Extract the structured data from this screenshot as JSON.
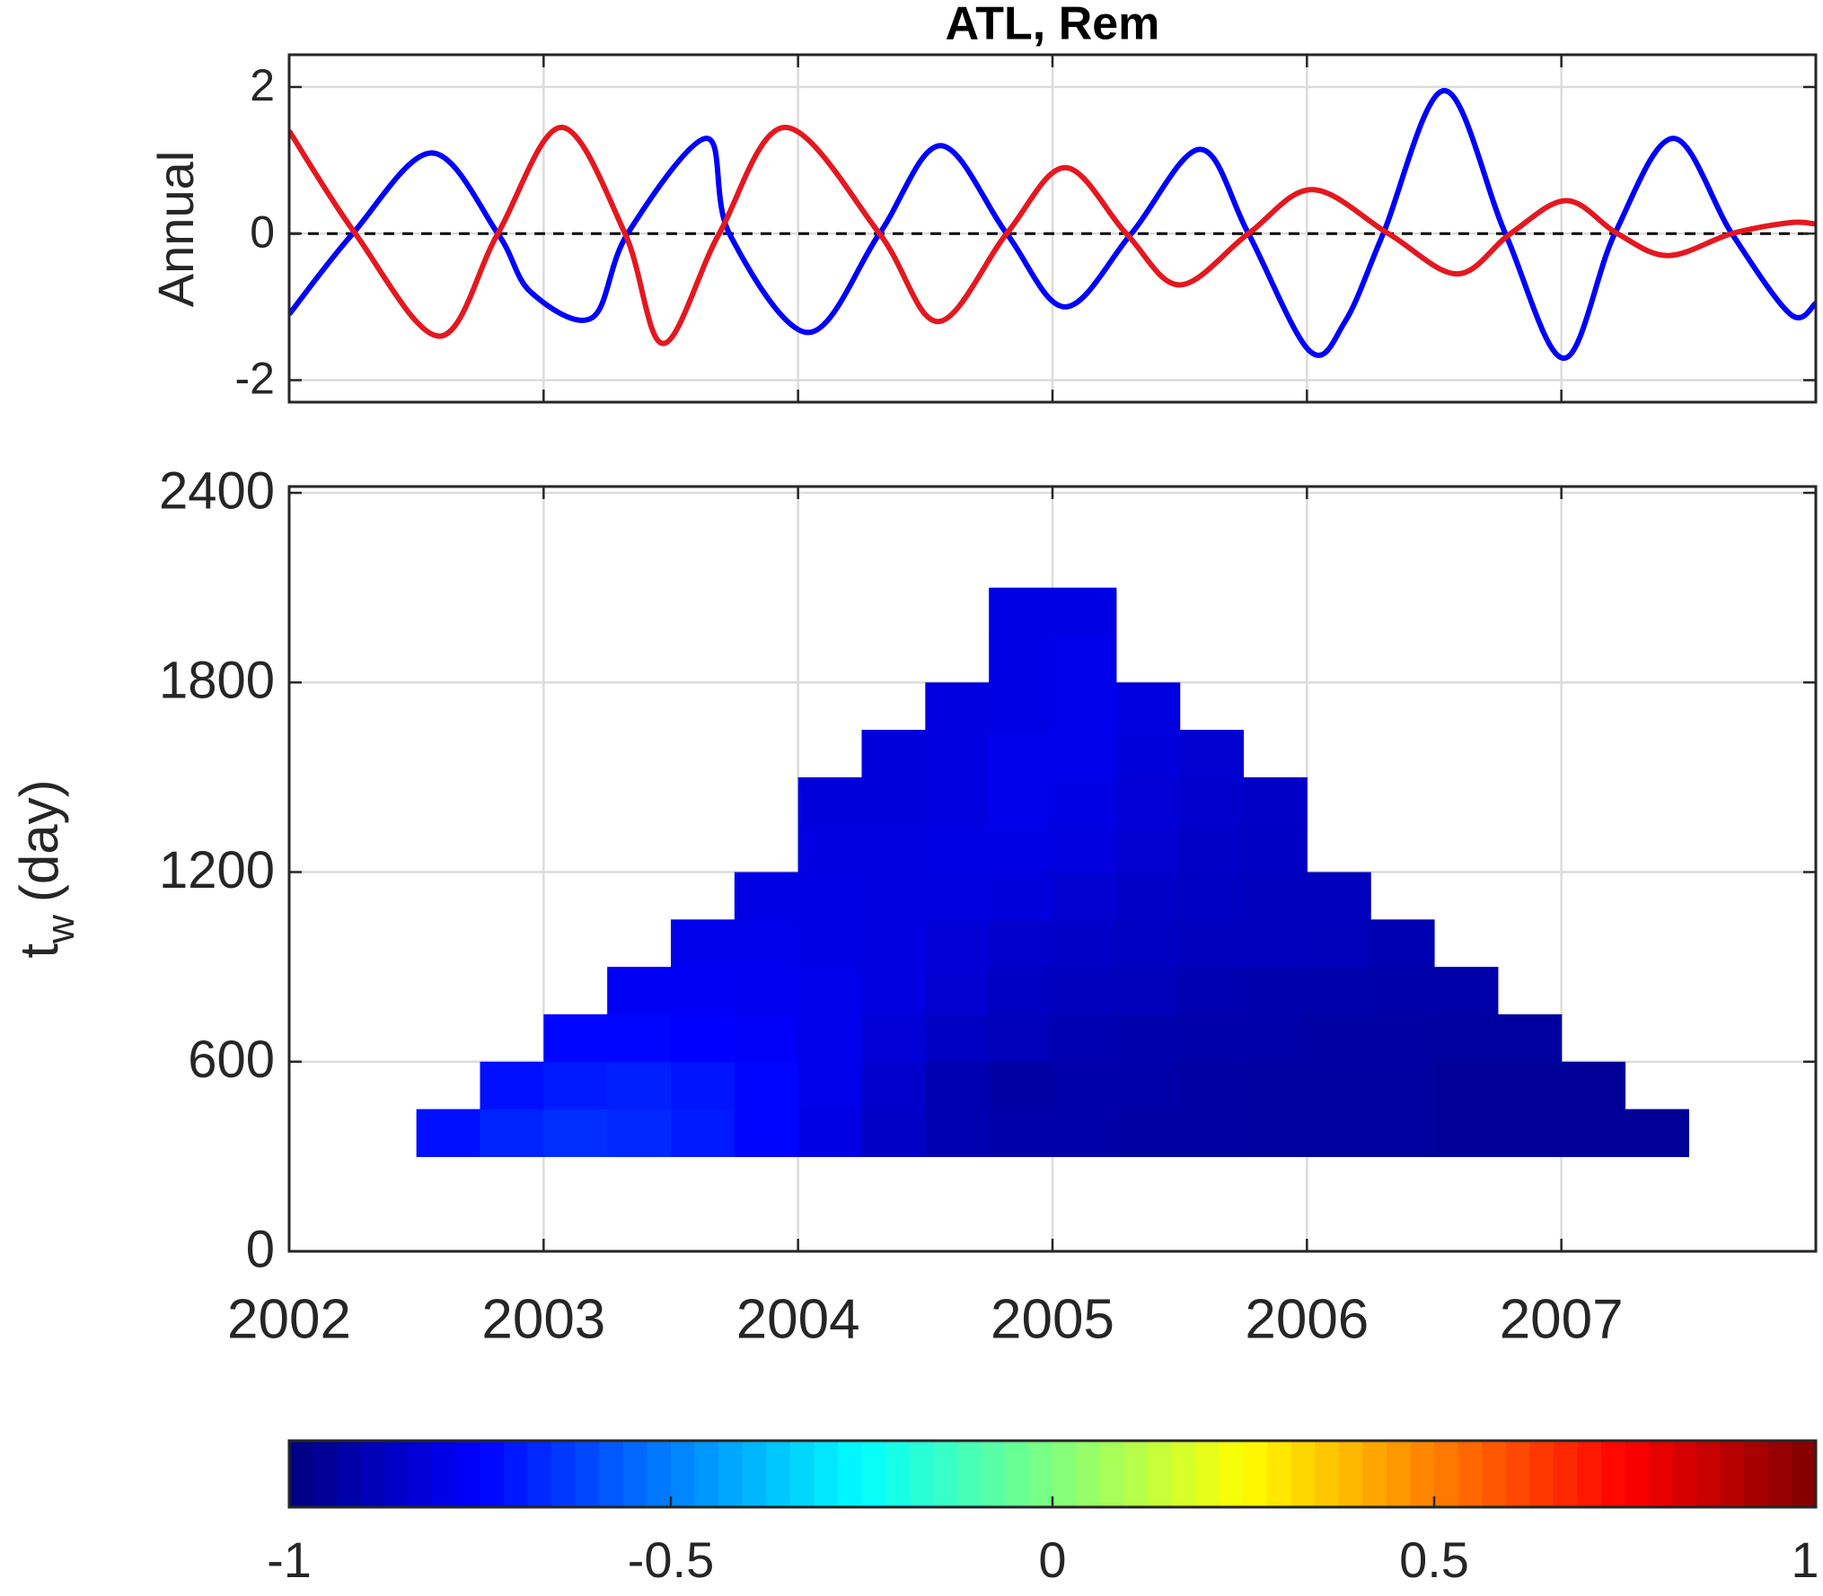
{
  "chart_data": [
    {
      "type": "line",
      "title": "ATL, Rem",
      "ylabel": "Annual",
      "xlim": [
        2002,
        2008
      ],
      "ylim": [
        -2.3,
        2.44
      ],
      "xticks": [
        2002,
        2003,
        2004,
        2005,
        2006,
        2007
      ],
      "yticks": [
        -2,
        0,
        2
      ],
      "grid": true,
      "hline": 0,
      "series": [
        {
          "color": "#0000ff",
          "x": [
            2002.0,
            2002.25,
            2002.56,
            2002.82,
            2002.95,
            2003.19,
            2003.33,
            2003.64,
            2003.73,
            2004.04,
            2004.32,
            2004.56,
            2004.82,
            2005.05,
            2005.31,
            2005.58,
            2005.77,
            2006.01,
            2006.15,
            2006.3,
            2006.54,
            2006.78,
            2007.01,
            2007.21,
            2007.44,
            2007.67,
            2007.9,
            2008.0
          ],
          "values": [
            -1.1,
            0,
            1.1,
            0,
            -0.8,
            -1.15,
            0,
            1.3,
            0,
            -1.35,
            0,
            1.2,
            0,
            -1.0,
            0,
            1.15,
            0,
            -1.6,
            -1.2,
            0,
            1.95,
            0,
            -1.7,
            0,
            1.3,
            0,
            -1.1,
            -0.95
          ]
        },
        {
          "color": "#e5171f",
          "x": [
            2002.0,
            2002.26,
            2002.59,
            2002.82,
            2003.07,
            2003.32,
            2003.47,
            2003.69,
            2003.95,
            2004.32,
            2004.55,
            2004.82,
            2005.05,
            2005.29,
            2005.5,
            2005.77,
            2006.02,
            2006.32,
            2006.59,
            2006.8,
            2007.02,
            2007.22,
            2007.42,
            2007.67,
            2007.9,
            2008.0
          ],
          "values": [
            1.4,
            0,
            -1.4,
            0,
            1.45,
            0,
            -1.5,
            0,
            1.45,
            0,
            -1.2,
            0,
            0.9,
            0,
            -0.7,
            0,
            0.6,
            0,
            -0.55,
            0,
            0.45,
            0,
            -0.3,
            0,
            0.15,
            0.13
          ]
        }
      ]
    },
    {
      "type": "heatmap",
      "ylabel": "t",
      "ylabel_subscript": "w",
      "ylabel_unit": "(day)",
      "xlim": [
        2002,
        2008
      ],
      "ylim": [
        0,
        2420
      ],
      "xticks": [
        2002,
        2003,
        2004,
        2005,
        2006,
        2007
      ],
      "yticks": [
        0,
        600,
        1200,
        1800,
        2400
      ],
      "grid": true,
      "colormap": "jet",
      "clim": [
        -1,
        1
      ],
      "colorbar_ticks": [
        -1,
        -0.5,
        0,
        0.5,
        1
      ],
      "x": [
        2002.625,
        2002.875,
        2003.125,
        2003.375,
        2003.625,
        2003.875,
        2004.125,
        2004.375,
        2004.625,
        2004.875,
        2005.125,
        2005.375,
        2005.625,
        2005.875,
        2006.125,
        2006.375,
        2006.625,
        2006.875,
        2007.125,
        2007.375
      ],
      "y": [
        375,
        525,
        675,
        825,
        975,
        1125,
        1275,
        1425,
        1575,
        1725,
        1875,
        2025
      ],
      "z": [
        [
          -0.72,
          -0.68,
          -0.66,
          -0.67,
          -0.7,
          -0.74,
          -0.8,
          -0.86,
          -0.9,
          -0.92,
          -0.92,
          -0.93,
          -0.93,
          -0.94,
          -0.94,
          -0.94,
          -0.95,
          -0.95,
          -0.95,
          -0.95
        ],
        [
          null,
          -0.72,
          -0.7,
          -0.69,
          -0.71,
          -0.74,
          -0.79,
          -0.85,
          -0.9,
          -0.93,
          -0.92,
          -0.92,
          -0.93,
          -0.94,
          -0.94,
          -0.94,
          -0.95,
          -0.95,
          -0.95,
          null
        ],
        [
          null,
          null,
          -0.74,
          -0.74,
          -0.75,
          -0.76,
          -0.79,
          -0.83,
          -0.87,
          -0.89,
          -0.9,
          -0.91,
          -0.92,
          -0.92,
          -0.93,
          -0.93,
          -0.94,
          -0.94,
          null,
          null
        ],
        [
          null,
          null,
          null,
          -0.77,
          -0.77,
          -0.78,
          -0.79,
          -0.81,
          -0.84,
          -0.87,
          -0.88,
          -0.89,
          -0.9,
          -0.91,
          -0.91,
          -0.92,
          -0.92,
          null,
          null,
          null
        ],
        [
          null,
          null,
          null,
          null,
          -0.79,
          -0.79,
          -0.8,
          -0.81,
          -0.83,
          -0.85,
          -0.86,
          -0.87,
          -0.88,
          -0.88,
          -0.89,
          -0.9,
          null,
          null,
          null,
          null
        ],
        [
          null,
          null,
          null,
          null,
          null,
          -0.8,
          -0.8,
          -0.81,
          -0.81,
          -0.82,
          -0.84,
          -0.86,
          -0.87,
          -0.88,
          -0.88,
          null,
          null,
          null,
          null,
          null
        ],
        [
          null,
          null,
          null,
          null,
          null,
          null,
          -0.81,
          -0.81,
          -0.8,
          -0.8,
          -0.81,
          -0.84,
          -0.86,
          -0.87,
          null,
          null,
          null,
          null,
          null,
          null
        ],
        [
          null,
          null,
          null,
          null,
          null,
          null,
          -0.82,
          -0.82,
          -0.81,
          -0.79,
          -0.8,
          -0.83,
          -0.85,
          -0.86,
          null,
          null,
          null,
          null,
          null,
          null
        ],
        [
          null,
          null,
          null,
          null,
          null,
          null,
          null,
          -0.82,
          -0.81,
          -0.79,
          -0.79,
          -0.82,
          -0.84,
          null,
          null,
          null,
          null,
          null,
          null,
          null
        ],
        [
          null,
          null,
          null,
          null,
          null,
          null,
          null,
          null,
          -0.81,
          -0.8,
          -0.79,
          -0.81,
          null,
          null,
          null,
          null,
          null,
          null,
          null,
          null
        ],
        [
          null,
          null,
          null,
          null,
          null,
          null,
          null,
          null,
          null,
          -0.8,
          -0.79,
          null,
          null,
          null,
          null,
          null,
          null,
          null,
          null,
          null
        ],
        [
          null,
          null,
          null,
          null,
          null,
          null,
          null,
          null,
          null,
          -0.8,
          -0.8,
          null,
          null,
          null,
          null,
          null,
          null,
          null,
          null,
          null
        ]
      ]
    }
  ]
}
